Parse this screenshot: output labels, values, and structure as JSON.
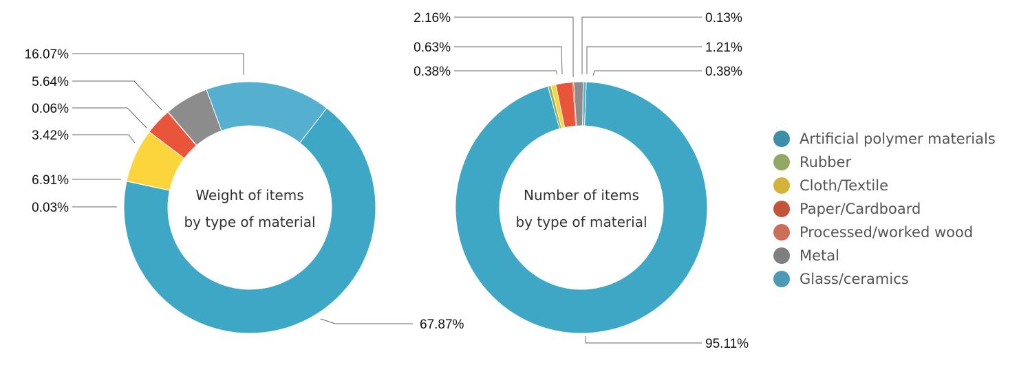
{
  "chart_data": [
    {
      "type": "pie",
      "donut": true,
      "title": "Weight of items by type of material",
      "title_lines": [
        "Weight of items",
        "by type of material"
      ],
      "slices": [
        {
          "name": "Artificial polymer materials",
          "value": 67.87,
          "label": "67.87%"
        },
        {
          "name": "Rubber",
          "value": 0.03,
          "label": "0.03%"
        },
        {
          "name": "Cloth/Textile",
          "value": 6.91,
          "label": "6.91%"
        },
        {
          "name": "Paper/Cardboard",
          "value": 3.42,
          "label": "3.42%"
        },
        {
          "name": "Processed/worked wood",
          "value": 0.06,
          "label": "0.06%"
        },
        {
          "name": "Metal",
          "value": 5.64,
          "label": "5.64%"
        },
        {
          "name": "Glass/ceramics",
          "value": 16.07,
          "label": "16.07%"
        }
      ]
    },
    {
      "type": "pie",
      "donut": true,
      "title": "Number of items by type of material",
      "title_lines": [
        "Number of items",
        "by type of material"
      ],
      "slices": [
        {
          "name": "Artificial polymer materials",
          "value": 95.11,
          "label": "95.11%"
        },
        {
          "name": "Rubber",
          "value": 0.38,
          "label": "0.38%"
        },
        {
          "name": "Cloth/Textile",
          "value": 0.63,
          "label": "0.63%"
        },
        {
          "name": "Paper/Cardboard",
          "value": 2.16,
          "label": "2.16%"
        },
        {
          "name": "Processed/worked wood",
          "value": 0.13,
          "label": "0.13%"
        },
        {
          "name": "Metal",
          "value": 1.21,
          "label": "1.21%"
        },
        {
          "name": "Glass/ceramics",
          "value": 0.38,
          "label": "0.38%"
        }
      ]
    }
  ],
  "slice_colors": {
    "Artificial polymer materials": "#3fa7c6",
    "Rubber": "#8fae4f",
    "Cloth/Textile": "#fcd43c",
    "Paper/Cardboard": "#e8553a",
    "Processed/worked wood": "#d96a50",
    "Metal": "#8c8c8c",
    "Glass/ceramics": "#55b0d0"
  },
  "legend": {
    "placement": "right",
    "items": [
      {
        "label": "Artificial polymer materials",
        "color": "#3d8ea8"
      },
      {
        "label": "Rubber",
        "color": "#93a864"
      },
      {
        "label": "Cloth/Textile",
        "color": "#d5b23a"
      },
      {
        "label": "Paper/Cardboard",
        "color": "#c4533b"
      },
      {
        "label": "Processed/worked wood",
        "color": "#cc6e58"
      },
      {
        "label": "Metal",
        "color": "#7f7f7f"
      },
      {
        "label": "Glass/ceramics",
        "color": "#4d9ab8"
      }
    ]
  }
}
